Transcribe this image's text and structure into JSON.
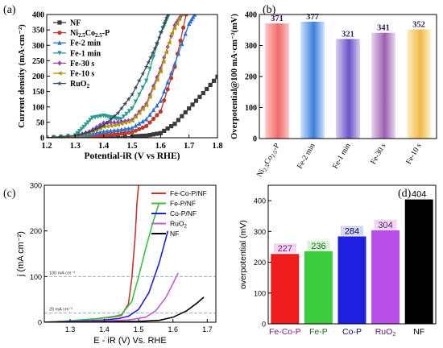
{
  "chart_data": [
    {
      "panel": "(a)",
      "type": "line",
      "xlabel": "Potential-iR (V vs RHE)",
      "ylabel": "Current density (mA·cm⁻²)",
      "xlim": [
        1.2,
        1.8
      ],
      "ylim": [
        0,
        400
      ],
      "xticks": [
        "1.2",
        "1.3",
        "1.4",
        "1.5",
        "1.6",
        "1.7",
        "1.8"
      ],
      "yticks": [
        "0",
        "50",
        "100",
        "150",
        "200",
        "250",
        "300",
        "350",
        "400"
      ],
      "legend": "top-left",
      "series": [
        {
          "name": "NF",
          "color": "#3a3a3a",
          "marker": "square",
          "x": [
            1.2,
            1.3,
            1.4,
            1.5,
            1.55,
            1.6,
            1.65,
            1.7,
            1.75,
            1.8
          ],
          "y": [
            0,
            1,
            2,
            4,
            7,
            15,
            45,
            95,
            145,
            198
          ]
        },
        {
          "name": "Ni2.5Co2.5-P",
          "color": "#c0392b",
          "marker": "circle",
          "x": [
            1.2,
            1.3,
            1.35,
            1.4,
            1.45,
            1.5,
            1.55,
            1.6,
            1.65,
            1.69
          ],
          "y": [
            0,
            2,
            5,
            8,
            12,
            18,
            38,
            85,
            230,
            400
          ]
        },
        {
          "name": "Fe-2 min",
          "color": "#2c6fd1",
          "marker": "triangle",
          "x": [
            1.2,
            1.3,
            1.35,
            1.4,
            1.45,
            1.5,
            1.55,
            1.6,
            1.65,
            1.7,
            1.72
          ],
          "y": [
            0,
            3,
            10,
            20,
            25,
            32,
            60,
            120,
            240,
            370,
            400
          ]
        },
        {
          "name": "Fe-1 min",
          "color": "#2a9d8f",
          "marker": "triangle-down",
          "x": [
            1.2,
            1.3,
            1.33,
            1.36,
            1.4,
            1.43,
            1.46,
            1.5,
            1.55,
            1.6,
            1.63
          ],
          "y": [
            0,
            8,
            35,
            65,
            72,
            65,
            60,
            95,
            185,
            340,
            400
          ]
        },
        {
          "name": "Fe-30 s",
          "color": "#8e44ad",
          "marker": "diamond",
          "x": [
            1.2,
            1.3,
            1.35,
            1.4,
            1.45,
            1.5,
            1.55,
            1.6,
            1.65,
            1.675
          ],
          "y": [
            0,
            5,
            20,
            48,
            50,
            58,
            110,
            225,
            365,
            400
          ]
        },
        {
          "name": "Fe-10 s",
          "color": "#b7950b",
          "marker": "triangle-left",
          "x": [
            1.2,
            1.3,
            1.35,
            1.4,
            1.45,
            1.5,
            1.55,
            1.6,
            1.64,
            1.675
          ],
          "y": [
            0,
            4,
            15,
            35,
            42,
            55,
            105,
            215,
            340,
            400
          ]
        },
        {
          "name": "RuO2",
          "color": "#34495e",
          "marker": "star",
          "x": [
            1.2,
            1.3,
            1.35,
            1.4,
            1.45,
            1.5,
            1.55,
            1.58,
            1.61,
            1.625
          ],
          "y": [
            0,
            6,
            18,
            40,
            80,
            140,
            230,
            290,
            360,
            400
          ]
        }
      ],
      "legend_labels": {
        "NF": "NF",
        "Ni2.5Co2.5-P_main": "Ni",
        "Ni2.5Co2.5-P_sub1": "2.5",
        "Ni2.5Co2.5-P_mid": "Co",
        "Ni2.5Co2.5-P_sub2": "2.5",
        "Ni2.5Co2.5-P_end": "-P",
        "Fe-2 min": "Fe-2 min",
        "Fe-1 min": "Fe-1 min",
        "Fe-30 s": "Fe-30 s",
        "Fe-10 s": "Fe-10 s",
        "RuO2_main": "RuO",
        "RuO2_sub": "2"
      }
    },
    {
      "panel": "(b)",
      "type": "bar",
      "ylabel": "Overpotential@100 mA·cm⁻²(mV)",
      "ylim": [
        0,
        400
      ],
      "yticks": [
        "0",
        "100",
        "200",
        "300",
        "400"
      ],
      "categories": [
        "Ni2.5Co2.5-P",
        "Fe-2 min",
        "Fe-1 min",
        "Fe-30 s",
        "Fe-10 s"
      ],
      "category_labels": {
        "first_main_1": "Ni",
        "first_sub_1": "2.5",
        "first_main_2": "Co",
        "first_sub_2": "2.5",
        "first_main_3": "-P",
        "rest": [
          "Fe-2 min",
          "Fe-1 min",
          "Fe-30 s",
          "Fe-10 s"
        ]
      },
      "values": [
        371,
        377,
        321,
        341,
        352
      ],
      "value_labels": [
        "371",
        "377",
        "321",
        "341",
        "352"
      ],
      "colors": [
        [
          "#ffc8c8",
          "#f06a6a"
        ],
        [
          "#cfe3ff",
          "#3a7fd8"
        ],
        [
          "#d8cdf2",
          "#6a52c8"
        ],
        [
          "#ead6ef",
          "#9a5fb0"
        ],
        [
          "#fff0c8",
          "#f0b84a"
        ]
      ]
    },
    {
      "panel": "(c)",
      "type": "line",
      "xlabel": "E - iR (V) Vs. RHE",
      "ylabel": "j (mA cm⁻²)",
      "xlim": [
        1.225,
        1.725
      ],
      "ylim": [
        0,
        300
      ],
      "xticks": [
        "1.3",
        "1.4",
        "1.5",
        "1.6",
        "1.7"
      ],
      "yticks": [
        "0",
        "100",
        "200",
        "300"
      ],
      "legend": "top-right",
      "reference_lines": [
        {
          "y": 100,
          "label": "100 mA cm⁻²"
        },
        {
          "y": 20,
          "label": "20 mA cm⁻²"
        }
      ],
      "series": [
        {
          "name": "Fe-Co-P/NF",
          "color": "#c0392b",
          "x": [
            1.225,
            1.3,
            1.38,
            1.41,
            1.43,
            1.45,
            1.47,
            1.48,
            1.49,
            1.495,
            1.5
          ],
          "y": [
            0,
            3,
            8,
            10,
            12,
            15,
            40,
            95,
            190,
            260,
            300
          ]
        },
        {
          "name": "Fe-P/NF",
          "color": "#3dbf3d",
          "x": [
            1.225,
            1.3,
            1.38,
            1.41,
            1.43,
            1.45,
            1.48,
            1.5,
            1.52,
            1.54,
            1.56
          ],
          "y": [
            0,
            3,
            8,
            11,
            13,
            17,
            45,
            100,
            160,
            215,
            262
          ]
        },
        {
          "name": "Co-P/NF",
          "color": "#1f1fd1",
          "x": [
            1.225,
            1.3,
            1.4,
            1.44,
            1.47,
            1.5,
            1.53,
            1.56,
            1.585
          ],
          "y": [
            0,
            2,
            5,
            8,
            13,
            28,
            65,
            130,
            200
          ]
        },
        {
          "name": "RuO2",
          "color": "#c05bd6",
          "x": [
            1.225,
            1.3,
            1.4,
            1.47,
            1.52,
            1.55,
            1.58,
            1.6,
            1.615
          ],
          "y": [
            0,
            1,
            3,
            5,
            11,
            25,
            55,
            85,
            108
          ]
        },
        {
          "name": "NF",
          "color": "#000000",
          "x": [
            1.225,
            1.4,
            1.5,
            1.56,
            1.6,
            1.64,
            1.67,
            1.69
          ],
          "y": [
            0,
            1,
            2,
            4,
            11,
            25,
            42,
            55
          ]
        }
      ],
      "legend_labels": {
        "Fe-Co-P/NF": "Fe-Co-P/NF",
        "Fe-P/NF": "Fe-P/NF",
        "Co-P/NF": "Co-P/NF",
        "RuO2_main": "RuO",
        "RuO2_sub": "2",
        "NF": "NF"
      }
    },
    {
      "panel": "(d)",
      "type": "bar",
      "ylabel": "overpotential (mV)",
      "ylim": [
        0,
        450
      ],
      "yticks": [
        "0",
        "100",
        "200",
        "300",
        "400"
      ],
      "categories": [
        "Fe-Co-P",
        "Fe-P",
        "Co-P",
        "RuO2",
        "NF"
      ],
      "category_labels": {
        "Fe-Co-P": "Fe-Co-P",
        "Fe-P": "Fe-P",
        "Co-P": "Co-P",
        "RuO2_main": "RuO",
        "RuO2_sub": "2",
        "NF": "NF"
      },
      "values": [
        227,
        236,
        284,
        304,
        404
      ],
      "value_labels": [
        "227",
        "236",
        "284",
        "304",
        "404"
      ],
      "colors": [
        "#ee1c1c",
        "#3dce3d",
        "#1f1fe0",
        "#b84fe8",
        "#000000"
      ],
      "label_colors": [
        "#7a1a7a",
        "#1a6a1a",
        "#0a0a60",
        "#5a1a7a",
        "#000000"
      ],
      "label_bg": [
        "#f3d6f3",
        "#d6f3d6",
        "#d6d6f3",
        "#efd6f7",
        "#ffffff"
      ]
    }
  ],
  "panel_labels": {
    "a": "(a)",
    "b": "(b)",
    "c": "(c)",
    "d": "(d)"
  }
}
